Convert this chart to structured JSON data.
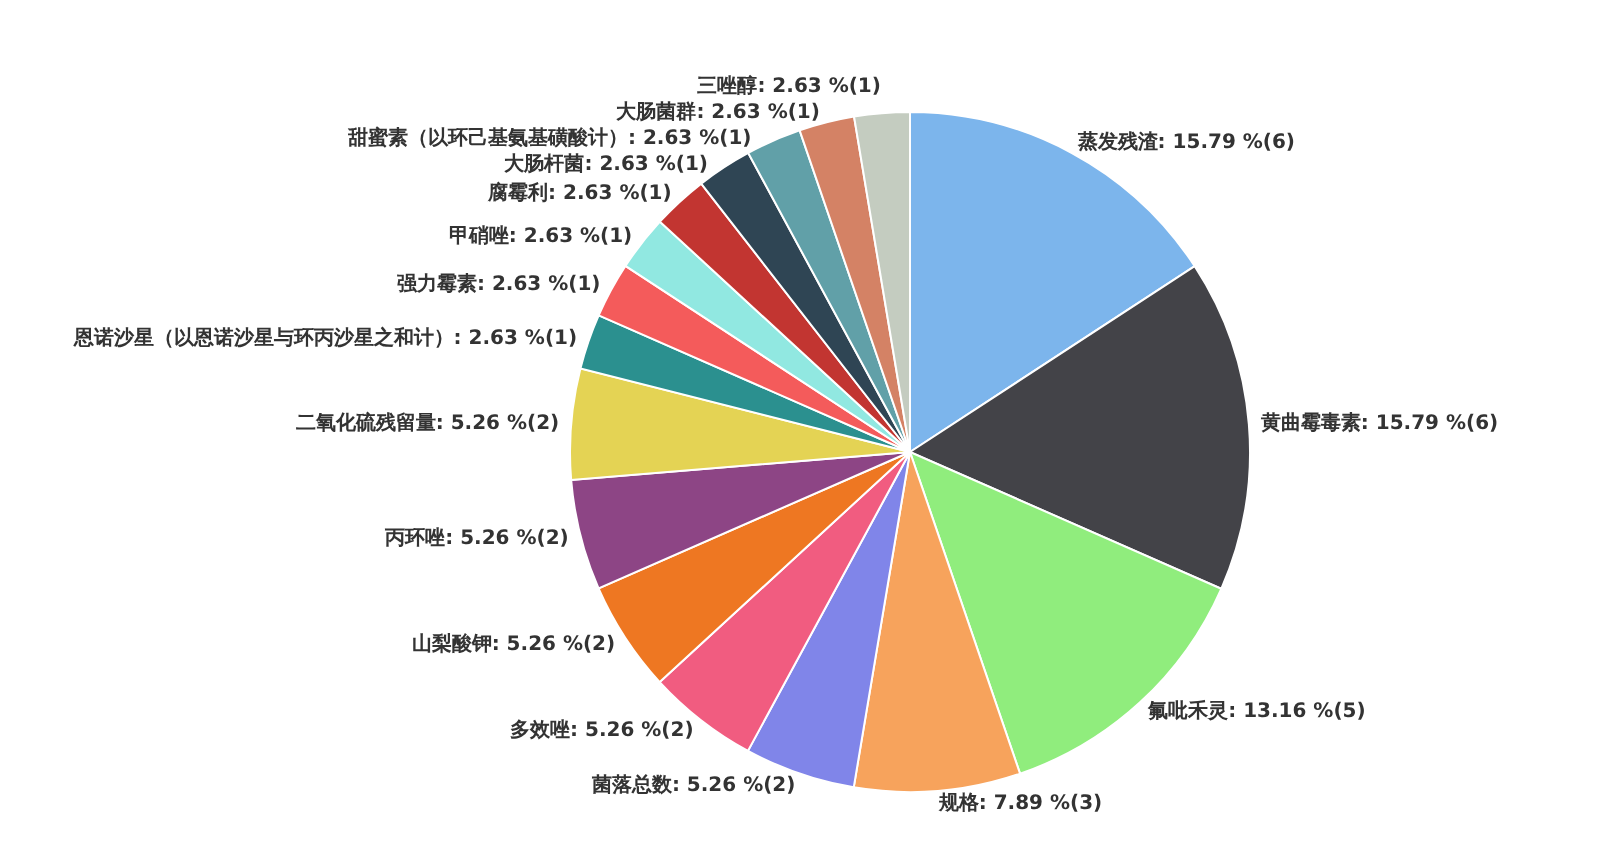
{
  "chart_data": {
    "type": "pie",
    "categories": [
      "蒸发残渣",
      "黄曲霉毒素",
      "氟吡禾灵",
      "规格",
      "菌落总数",
      "多效唑",
      "山梨酸钾",
      "丙环唑",
      "二氧化硫残留量",
      "恩诺沙星（以恩诺沙星与环丙沙星之和计）",
      "强力霉素",
      "甲硝唑",
      "腐霉利",
      "大肠杆菌",
      "甜蜜素（以环己基氨基磺酸计）",
      "大肠菌群",
      "三唑醇"
    ],
    "values": [
      15.79,
      15.79,
      13.16,
      7.89,
      5.26,
      5.26,
      5.26,
      5.26,
      5.26,
      2.63,
      2.63,
      2.63,
      2.63,
      2.63,
      2.63,
      2.63,
      2.63
    ],
    "value_labels": [
      "15.79 %(6)",
      "15.79 %(6)",
      "13.16 %(5)",
      "7.89 %(3)",
      "5.26 %(2)",
      "5.26 %(2)",
      "5.26 %(2)",
      "5.26 %(2)",
      "5.26 %(2)",
      "2.63 %(1)",
      "2.63 %(1)",
      "2.63 %(1)",
      "2.63 %(1)",
      "2.63 %(1)",
      "2.63 %(1)",
      "2.63 %(1)",
      "2.63 %(1)"
    ],
    "colors": [
      "#7cb5ec",
      "#434348",
      "#90ed7d",
      "#f7a35c",
      "#8085e9",
      "#f15c80",
      "#ee7722",
      "#8d4585",
      "#e4d354",
      "#2b908f",
      "#f45b5b",
      "#91e8e1",
      "#c23531",
      "#2f4554",
      "#61a0a8",
      "#d48265",
      "#c4ccc0"
    ]
  }
}
